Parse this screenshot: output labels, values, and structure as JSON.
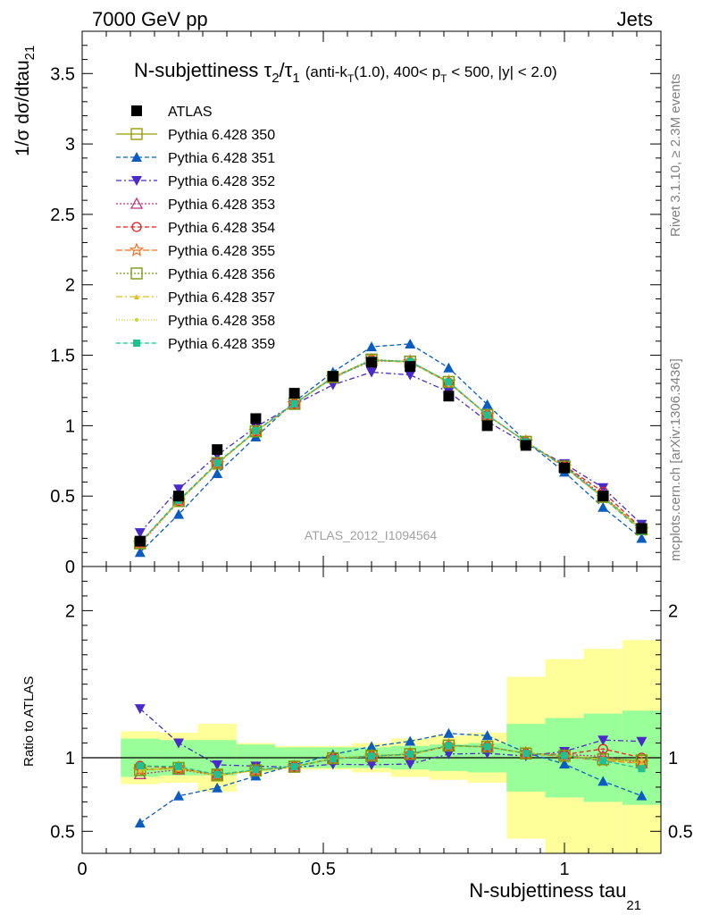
{
  "header": {
    "left": "7000 GeV pp",
    "right": "Jets"
  },
  "side_labels": {
    "rivet": "Rivet 3.1.10, ≥ 2.3M events",
    "mcplots": "mcplots.cern.ch [arXiv:1306.3436]"
  },
  "watermark": "ATLAS_2012_I1094564",
  "colors": {
    "atlas": "#000000",
    "band_inner": "#99ff99",
    "band_outer": "#ffff99",
    "axis": "#000000",
    "side_text": "#808080",
    "watermark": "#a0a0a0"
  },
  "chart_data": {
    "type": "scatter",
    "title": {
      "main": "N-subjettiness τ",
      "sub1": "2",
      "slash": "/τ",
      "sub2": "1",
      "cut1": "(anti-k",
      "cut1sub": "T",
      "cut2": "(1.0), 400< p",
      "cut2sub": "T",
      "cut3": " < 500, |y| < 2.0)"
    },
    "xlabel": "N-subjettiness tau",
    "xlabel_sub": "21",
    "ylabel": "1/σ dσ/dtau",
    "ylabel_sub": "21",
    "ratio_ylabel": "Ratio to ATLAS",
    "xlim": [
      0,
      1.2
    ],
    "ylim": [
      0,
      3.8
    ],
    "ratio_ylim": [
      0.35,
      2.3
    ],
    "x_ticks": [
      {
        "v": 0,
        "label": "0"
      },
      {
        "v": 0.5,
        "label": "0.5"
      },
      {
        "v": 1,
        "label": "1"
      }
    ],
    "y_ticks": [
      {
        "v": 0,
        "label": "0"
      },
      {
        "v": 0.5,
        "label": "0.5"
      },
      {
        "v": 1,
        "label": "1"
      },
      {
        "v": 1.5,
        "label": "1.5"
      },
      {
        "v": 2,
        "label": "2"
      },
      {
        "v": 2.5,
        "label": "2.5"
      },
      {
        "v": 3,
        "label": "3"
      },
      {
        "v": 3.5,
        "label": "3.5"
      }
    ],
    "ratio_ticks": [
      {
        "v": 0.5,
        "label": "0.5"
      },
      {
        "v": 1,
        "label": "1"
      },
      {
        "v": 2,
        "label": "2"
      }
    ],
    "x": [
      0.12,
      0.2,
      0.28,
      0.36,
      0.44,
      0.52,
      0.6,
      0.68,
      0.76,
      0.84,
      0.92,
      1.0,
      1.08,
      1.16
    ],
    "bin_edges": [
      0.08,
      0.16,
      0.24,
      0.32,
      0.4,
      0.48,
      0.56,
      0.64,
      0.72,
      0.8,
      0.88,
      0.96,
      1.04,
      1.12,
      1.2
    ],
    "atlas": {
      "name": "ATLAS",
      "values": [
        0.18,
        0.5,
        0.83,
        1.05,
        1.23,
        1.35,
        1.45,
        1.42,
        1.21,
        1.0,
        0.86,
        0.7,
        0.5,
        0.27
      ]
    },
    "band_inner": [
      [
        0.87,
        1.13
      ],
      [
        0.88,
        1.12
      ],
      [
        0.88,
        1.12
      ],
      [
        0.91,
        1.09
      ],
      [
        0.93,
        1.07
      ],
      [
        0.93,
        1.07
      ],
      [
        0.93,
        1.07
      ],
      [
        0.92,
        1.08
      ],
      [
        0.91,
        1.09
      ],
      [
        0.9,
        1.1
      ],
      [
        0.77,
        1.23
      ],
      [
        0.73,
        1.27
      ],
      [
        0.7,
        1.3
      ],
      [
        0.68,
        1.32
      ]
    ],
    "band_outer": [
      [
        0.82,
        1.18
      ],
      [
        0.83,
        1.17
      ],
      [
        0.77,
        1.23
      ],
      [
        0.9,
        1.1
      ],
      [
        0.92,
        1.08
      ],
      [
        0.92,
        1.08
      ],
      [
        0.9,
        1.1
      ],
      [
        0.87,
        1.13
      ],
      [
        0.85,
        1.15
      ],
      [
        0.83,
        1.17
      ],
      [
        0.45,
        1.55
      ],
      [
        0.33,
        1.67
      ],
      [
        0.26,
        1.74
      ],
      [
        0.2,
        1.8
      ]
    ],
    "series": [
      {
        "name": "Pythia 6.428 350",
        "color": "#9a9a00",
        "dash": "",
        "marker": "square-open",
        "values": [
          0.165,
          0.465,
          0.73,
          0.96,
          1.155,
          1.345,
          1.465,
          1.455,
          1.31,
          1.075,
          0.885,
          0.71,
          0.495,
          0.265
        ]
      },
      {
        "name": "Pythia 6.428 351",
        "color": "#0a5cc0",
        "dash": "5,3",
        "marker": "triangle-up",
        "values": [
          0.1,
          0.37,
          0.66,
          0.92,
          1.17,
          1.38,
          1.56,
          1.58,
          1.41,
          1.15,
          0.89,
          0.67,
          0.42,
          0.2
        ]
      },
      {
        "name": "Pythia 6.428 352",
        "color": "#4a2ac8",
        "dash": "6,3,2,3",
        "marker": "triangle-down",
        "values": [
          0.24,
          0.55,
          0.79,
          0.99,
          1.15,
          1.29,
          1.38,
          1.36,
          1.24,
          1.03,
          0.87,
          0.73,
          0.56,
          0.3
        ]
      },
      {
        "name": "Pythia 6.428 353",
        "color": "#c0307a",
        "dash": "2,2",
        "marker": "triangle-up-open",
        "values": [
          0.16,
          0.46,
          0.73,
          0.96,
          1.155,
          1.34,
          1.46,
          1.455,
          1.305,
          1.075,
          0.885,
          0.715,
          0.505,
          0.26
        ]
      },
      {
        "name": "Pythia 6.428 354",
        "color": "#e02020",
        "dash": "5,3",
        "marker": "circle-open",
        "values": [
          0.17,
          0.465,
          0.735,
          0.96,
          1.155,
          1.345,
          1.465,
          1.45,
          1.305,
          1.075,
          0.885,
          0.715,
          0.53,
          0.27
        ]
      },
      {
        "name": "Pythia 6.428 355",
        "color": "#f07020",
        "dash": "7,3",
        "marker": "star-open",
        "values": [
          0.165,
          0.465,
          0.73,
          0.96,
          1.155,
          1.34,
          1.465,
          1.455,
          1.31,
          1.075,
          0.885,
          0.705,
          0.49,
          0.26
        ]
      },
      {
        "name": "Pythia 6.428 356",
        "color": "#7a9a10",
        "dash": "2,2",
        "marker": "square-open",
        "values": [
          0.165,
          0.465,
          0.735,
          0.96,
          1.155,
          1.345,
          1.47,
          1.455,
          1.31,
          1.075,
          0.885,
          0.71,
          0.495,
          0.265
        ]
      },
      {
        "name": "Pythia 6.428 357",
        "color": "#d8c020",
        "dash": "7,3,2,3",
        "marker": "tri-small",
        "values": [
          0.165,
          0.465,
          0.73,
          0.96,
          1.155,
          1.345,
          1.465,
          1.45,
          1.305,
          1.075,
          0.885,
          0.71,
          0.495,
          0.26
        ]
      },
      {
        "name": "Pythia 6.428 358",
        "color": "#c8d820",
        "dash": "1,2",
        "marker": "dot",
        "values": [
          0.165,
          0.46,
          0.73,
          0.96,
          1.155,
          1.345,
          1.465,
          1.45,
          1.305,
          1.075,
          0.885,
          0.71,
          0.49,
          0.265
        ]
      },
      {
        "name": "Pythia 6.428 359",
        "color": "#20c090",
        "dash": "5,3",
        "marker": "square-small",
        "values": [
          0.17,
          0.47,
          0.735,
          0.965,
          1.155,
          1.34,
          1.465,
          1.455,
          1.31,
          1.075,
          0.885,
          0.71,
          0.49,
          0.25
        ]
      }
    ]
  }
}
